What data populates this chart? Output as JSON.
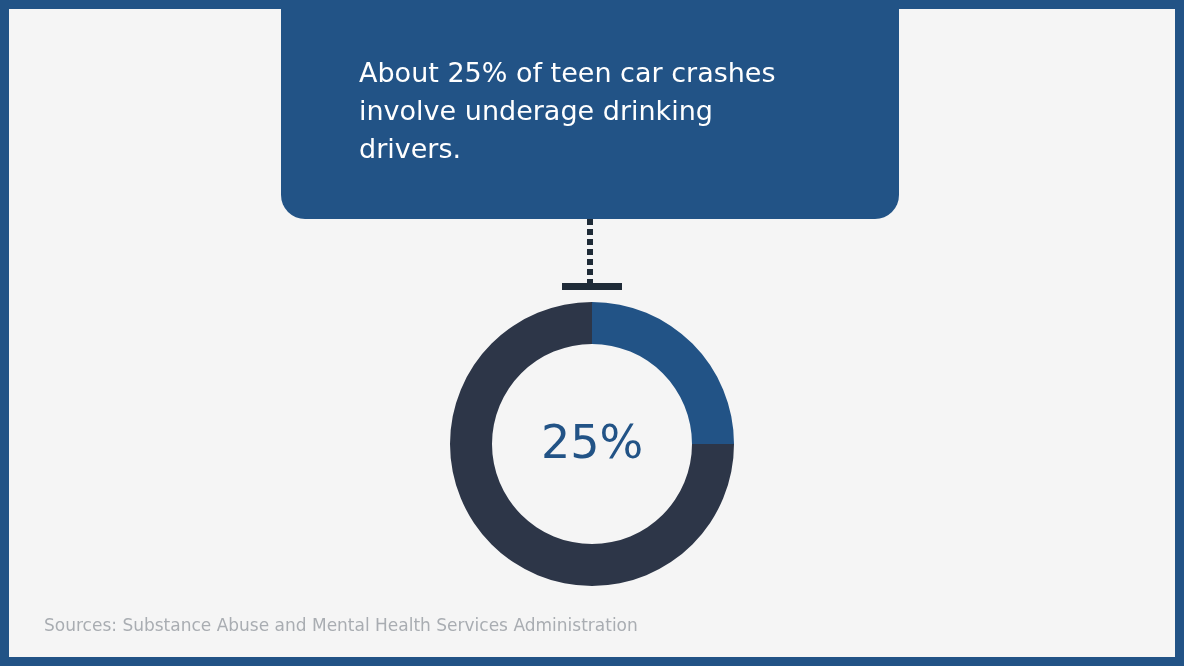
{
  "chart_data": {
    "type": "donut",
    "title": "About 25% of teen car crashes involve underage drinking drivers.",
    "categories": [
      null,
      null
    ],
    "values": [
      25,
      75
    ],
    "colors": [
      "#225386",
      "#2d3648"
    ],
    "value_labels": [
      "25%",
      null
    ],
    "annotations": [
      "Sources: Substance Abuse and Mental Health Services Administration"
    ]
  }
}
